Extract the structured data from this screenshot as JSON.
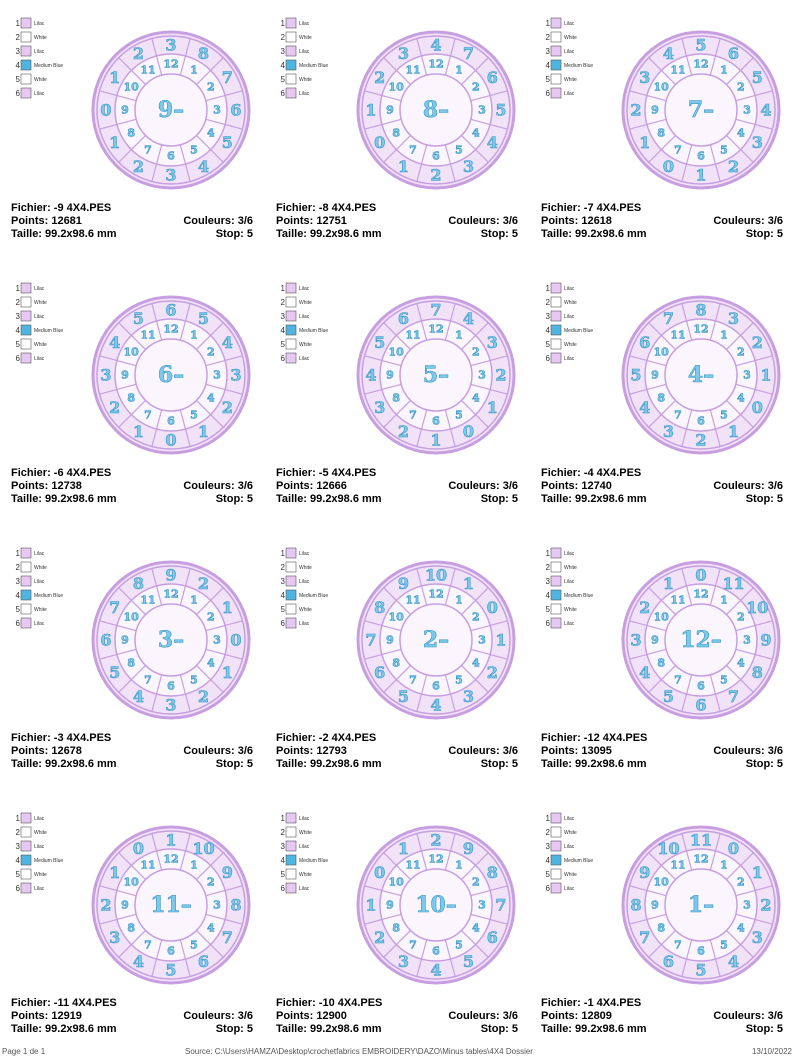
{
  "thread_colors": [
    {
      "number": "1",
      "name": "Lilac",
      "color": "#e6c8f2"
    },
    {
      "number": "2",
      "name": "White",
      "color": "#ffffff"
    },
    {
      "number": "3",
      "name": "Lilac",
      "color": "#e6c8f2"
    },
    {
      "number": "4",
      "name": "Medium Blue",
      "color": "#4fb4e0"
    },
    {
      "number": "5",
      "name": "White",
      "color": "#ffffff"
    },
    {
      "number": "6",
      "name": "Lilac",
      "color": "#e6c8f2"
    }
  ],
  "inner_ring": [
    "12",
    "1",
    "2",
    "3",
    "4",
    "5",
    "6",
    "7",
    "8",
    "9",
    "10",
    "11"
  ],
  "designs": [
    {
      "file": "Fichier: -9 4X4.PES",
      "points": "Points: 12681",
      "colors": "Couleurs: 3/6",
      "size": "Taille: 99.2x98.6 mm",
      "stop": "Stop: 5",
      "center": "9–",
      "outer": [
        "3",
        "8",
        "7",
        "6",
        "5",
        "4",
        "3",
        "2",
        "1",
        "0",
        "1",
        "2"
      ]
    },
    {
      "file": "Fichier: -8 4X4.PES",
      "points": "Points: 12751",
      "colors": "Couleurs: 3/6",
      "size": "Taille: 99.2x98.6 mm",
      "stop": "Stop: 5",
      "center": "8–",
      "outer": [
        "4",
        "7",
        "6",
        "5",
        "4",
        "3",
        "2",
        "1",
        "0",
        "1",
        "2",
        "3"
      ]
    },
    {
      "file": "Fichier: -7 4X4.PES",
      "points": "Points: 12618",
      "colors": "Couleurs: 3/6",
      "size": "Taille: 99.2x98.6 mm",
      "stop": "Stop: 5",
      "center": "7–",
      "outer": [
        "5",
        "6",
        "5",
        "4",
        "3",
        "2",
        "1",
        "0",
        "1",
        "2",
        "3",
        "4"
      ]
    },
    {
      "file": "Fichier: -6 4X4.PES",
      "points": "Points: 12738",
      "colors": "Couleurs: 3/6",
      "size": "Taille: 99.2x98.6 mm",
      "stop": "Stop: 5",
      "center": "6–",
      "outer": [
        "6",
        "5",
        "4",
        "3",
        "2",
        "1",
        "0",
        "1",
        "2",
        "3",
        "4",
        "5"
      ]
    },
    {
      "file": "Fichier: -5 4X4.PES",
      "points": "Points: 12666",
      "colors": "Couleurs: 3/6",
      "size": "Taille: 99.2x98.6 mm",
      "stop": "Stop: 5",
      "center": "5–",
      "outer": [
        "7",
        "4",
        "3",
        "2",
        "1",
        "0",
        "1",
        "2",
        "3",
        "4",
        "5",
        "6"
      ]
    },
    {
      "file": "Fichier: -4 4X4.PES",
      "points": "Points: 12740",
      "colors": "Couleurs: 3/6",
      "size": "Taille: 99.2x98.6 mm",
      "stop": "Stop: 5",
      "center": "4–",
      "outer": [
        "8",
        "3",
        "2",
        "1",
        "0",
        "1",
        "2",
        "3",
        "4",
        "5",
        "6",
        "7"
      ]
    },
    {
      "file": "Fichier: -3 4X4.PES",
      "points": "Points: 12678",
      "colors": "Couleurs: 3/6",
      "size": "Taille: 99.2x98.6 mm",
      "stop": "Stop: 5",
      "center": "3–",
      "outer": [
        "9",
        "2",
        "1",
        "0",
        "1",
        "2",
        "3",
        "4",
        "5",
        "6",
        "7",
        "8"
      ]
    },
    {
      "file": "Fichier: -2 4X4.PES",
      "points": "Points: 12793",
      "colors": "Couleurs: 3/6",
      "size": "Taille: 99.2x98.6 mm",
      "stop": "Stop: 5",
      "center": "2–",
      "outer": [
        "10",
        "1",
        "0",
        "1",
        "2",
        "3",
        "4",
        "5",
        "6",
        "7",
        "8",
        "9"
      ]
    },
    {
      "file": "Fichier: -12 4X4.PES",
      "points": "Points: 13095",
      "colors": "Couleurs: 3/6",
      "size": "Taille: 99.2x98.6 mm",
      "stop": "Stop: 5",
      "center": "12–",
      "outer": [
        "0",
        "11",
        "10",
        "9",
        "8",
        "7",
        "6",
        "5",
        "4",
        "3",
        "2",
        "1"
      ]
    },
    {
      "file": "Fichier: -11 4X4.PES",
      "points": "Points: 12919",
      "colors": "Couleurs: 3/6",
      "size": "Taille: 99.2x98.6 mm",
      "stop": "Stop: 5",
      "center": "11–",
      "outer": [
        "1",
        "10",
        "9",
        "8",
        "7",
        "6",
        "5",
        "4",
        "3",
        "2",
        "1",
        "0"
      ]
    },
    {
      "file": "Fichier: -10 4X4.PES",
      "points": "Points: 12900",
      "colors": "Couleurs: 3/6",
      "size": "Taille: 99.2x98.6 mm",
      "stop": "Stop: 5",
      "center": "10–",
      "outer": [
        "2",
        "9",
        "8",
        "7",
        "6",
        "5",
        "4",
        "3",
        "2",
        "1",
        "0",
        "1"
      ]
    },
    {
      "file": "Fichier: -1 4X4.PES",
      "points": "Points: 12809",
      "colors": "Couleurs: 3/6",
      "size": "Taille: 99.2x98.6 mm",
      "stop": "Stop: 5",
      "center": "1–",
      "outer": [
        "11",
        "0",
        "1",
        "2",
        "3",
        "4",
        "5",
        "6",
        "7",
        "8",
        "9",
        "10"
      ]
    }
  ],
  "footer": {
    "page": "Page 1 de 1",
    "source": "Source: C:\\Users\\HAMZA\\Desktop\\crochetfabrics EMBROIDERY\\DAZO\\Minus tables\\4X4 Dossier",
    "date": "13/10/2022"
  }
}
